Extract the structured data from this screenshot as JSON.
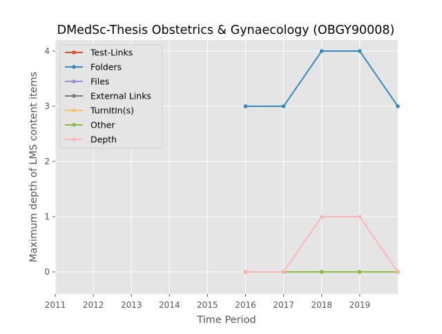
{
  "chart_data": {
    "type": "line",
    "title": "DMedSc-Thesis Obstetrics & Gynaecology (OBGY90008)",
    "xlabel": "Time Period",
    "ylabel": "Maximum depth of LMS content items",
    "xlim": [
      2011,
      2020
    ],
    "ylim": [
      -0.4,
      4.2
    ],
    "x_ticks": [
      2011,
      2012,
      2013,
      2014,
      2015,
      2016,
      2017,
      2018,
      2019
    ],
    "y_ticks": [
      0,
      1,
      2,
      3,
      4
    ],
    "grid": true,
    "legend_position": "upper-left",
    "x": [
      2016,
      2017,
      2018,
      2019,
      2020
    ],
    "series": [
      {
        "name": "Test-Links",
        "color": "#E24A33",
        "values": [
          0,
          0,
          0,
          0,
          0
        ]
      },
      {
        "name": "Folders",
        "color": "#348ABD",
        "values": [
          3,
          3,
          4,
          4,
          3
        ]
      },
      {
        "name": "Files",
        "color": "#988ED5",
        "values": [
          0,
          0,
          0,
          0,
          0
        ]
      },
      {
        "name": "External Links",
        "color": "#777777",
        "values": [
          0,
          0,
          0,
          0,
          0
        ]
      },
      {
        "name": "TurnItIn(s)",
        "color": "#FBC15E",
        "values": [
          0,
          0,
          0,
          0,
          0
        ]
      },
      {
        "name": "Other",
        "color": "#8EBA42",
        "values": [
          0,
          0,
          0,
          0,
          0
        ]
      },
      {
        "name": "Depth",
        "color": "#FFB5B8",
        "values": [
          0,
          0,
          1,
          1,
          0
        ]
      }
    ]
  }
}
